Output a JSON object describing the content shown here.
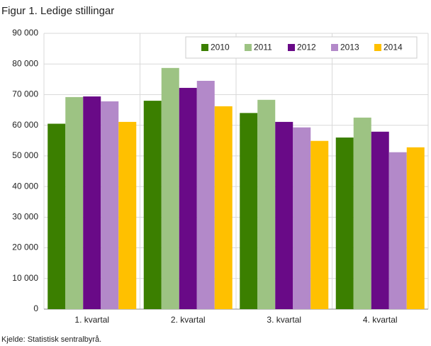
{
  "chart_data": {
    "type": "bar",
    "title": "Figur 1. Ledige stillingar",
    "source": "Kjelde: Statistisk sentralbyrå.",
    "categories": [
      "1. kvartal",
      "2. kvartal",
      "3. kvartal",
      "4. kvartal"
    ],
    "series": [
      {
        "name": "2010",
        "color": "#3b7f00",
        "values": [
          60500,
          68000,
          64000,
          56000
        ]
      },
      {
        "name": "2011",
        "color": "#9dc383",
        "values": [
          69200,
          78700,
          68300,
          62500
        ]
      },
      {
        "name": "2012",
        "color": "#690a87",
        "values": [
          69400,
          72200,
          61100,
          57900
        ]
      },
      {
        "name": "2013",
        "color": "#b389c9",
        "values": [
          67800,
          74500,
          59300,
          51200
        ]
      },
      {
        "name": "2014",
        "color": "#ffc000",
        "values": [
          61100,
          66200,
          54900,
          52800
        ]
      }
    ],
    "ylim": [
      0,
      90000
    ],
    "yticks": [
      0,
      {
        "value": 10000,
        "label": "10 000"
      },
      {
        "value": 20000,
        "label": "20 000"
      },
      {
        "value": 30000,
        "label": "30 000"
      },
      {
        "value": 40000,
        "label": "40 000"
      },
      {
        "value": 50000,
        "label": "50 000"
      },
      {
        "value": 60000,
        "label": "60 000"
      },
      {
        "value": 70000,
        "label": "70 000"
      },
      {
        "value": 80000,
        "label": "80 000"
      },
      {
        "value": 90000,
        "label": "90 000"
      }
    ],
    "grid": true,
    "legend": "top-right"
  }
}
